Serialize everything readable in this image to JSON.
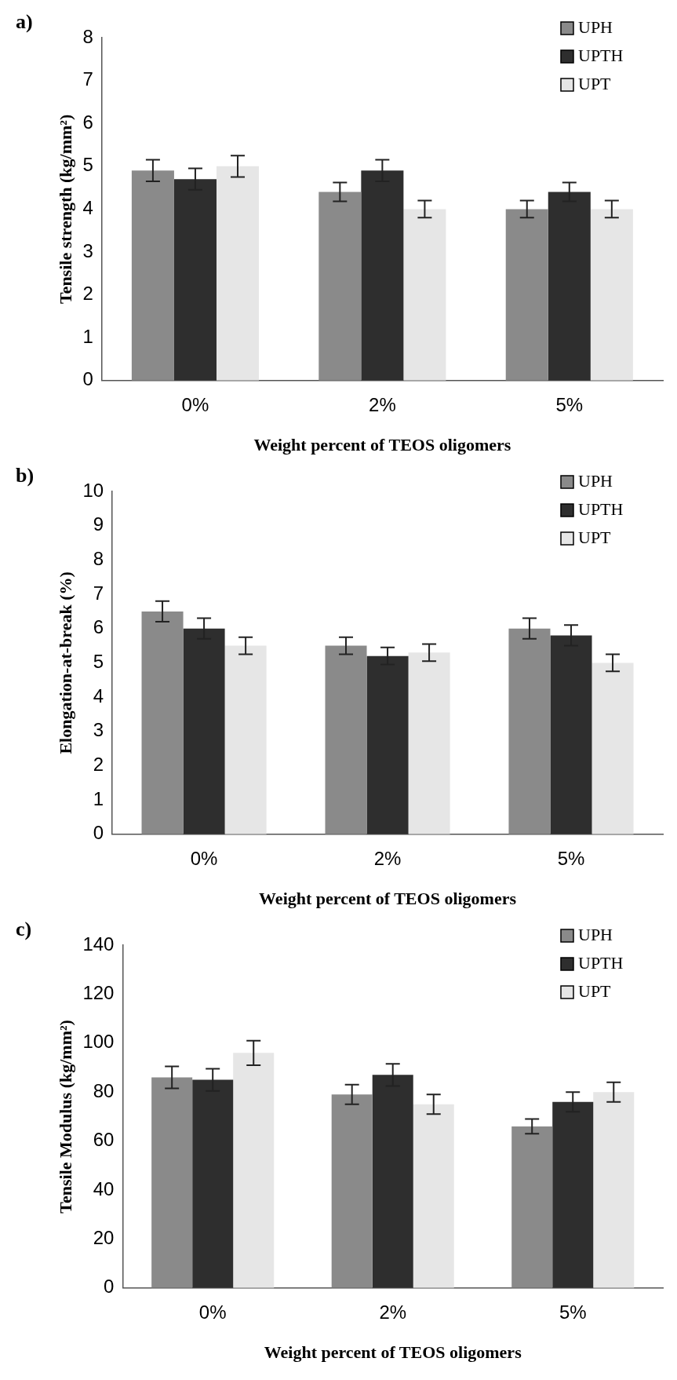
{
  "chart_data": [
    {
      "type": "bar",
      "annotations": [
        "a)"
      ],
      "ylabel": "Tensile strength (kg/mm²)",
      "xlabel": "Weight percent of TEOS oligomers",
      "categories": [
        "0%",
        "2%",
        "5%"
      ],
      "series": [
        {
          "name": "UPH",
          "color": "#8a8a8a",
          "values": [
            4.9,
            4.4,
            4.0
          ],
          "errors": [
            0.25,
            0.22,
            0.2
          ]
        },
        {
          "name": "UPTH",
          "color": "#2e2e2e",
          "values": [
            4.7,
            4.9,
            4.4
          ],
          "errors": [
            0.25,
            0.25,
            0.22
          ]
        },
        {
          "name": "UPT",
          "color": "#e6e6e6",
          "values": [
            5.0,
            4.0,
            4.0
          ],
          "errors": [
            0.25,
            0.2,
            0.2
          ]
        }
      ],
      "ylim": [
        0,
        8
      ],
      "yticks": [
        0,
        1,
        2,
        3,
        4,
        5,
        6,
        7,
        8
      ],
      "legend": "top right",
      "grid": false
    },
    {
      "type": "bar",
      "annotations": [
        "b)"
      ],
      "ylabel": "Elongation-at-break (%)",
      "xlabel": "Weight percent of TEOS oligomers",
      "categories": [
        "0%",
        "2%",
        "5%"
      ],
      "series": [
        {
          "name": "UPH",
          "color": "#8a8a8a",
          "values": [
            6.5,
            5.5,
            6.0
          ],
          "errors": [
            0.3,
            0.25,
            0.3
          ]
        },
        {
          "name": "UPTH",
          "color": "#2e2e2e",
          "values": [
            6.0,
            5.2,
            5.8
          ],
          "errors": [
            0.3,
            0.25,
            0.3
          ]
        },
        {
          "name": "UPT",
          "color": "#e6e6e6",
          "values": [
            5.5,
            5.3,
            5.0
          ],
          "errors": [
            0.25,
            0.25,
            0.25
          ]
        }
      ],
      "ylim": [
        0,
        10
      ],
      "yticks": [
        0,
        1,
        2,
        3,
        4,
        5,
        6,
        7,
        8,
        9,
        10
      ],
      "legend": "top right",
      "grid": false
    },
    {
      "type": "bar",
      "annotations": [
        "c)"
      ],
      "ylabel": "Tensile Modulus (kg/mm²)",
      "xlabel": "Weight percent of TEOS oligomers",
      "categories": [
        "0%",
        "2%",
        "5%"
      ],
      "series": [
        {
          "name": "UPH",
          "color": "#8a8a8a",
          "values": [
            86,
            79,
            66
          ],
          "errors": [
            4.5,
            4,
            3
          ]
        },
        {
          "name": "UPTH",
          "color": "#2e2e2e",
          "values": [
            85,
            87,
            76
          ],
          "errors": [
            4.5,
            4.5,
            4
          ]
        },
        {
          "name": "UPT",
          "color": "#e6e6e6",
          "values": [
            96,
            75,
            80
          ],
          "errors": [
            5,
            4,
            4
          ]
        }
      ],
      "ylim": [
        0,
        140
      ],
      "yticks": [
        0,
        20,
        40,
        60,
        80,
        100,
        120,
        140
      ],
      "legend": "top right",
      "grid": false
    }
  ]
}
